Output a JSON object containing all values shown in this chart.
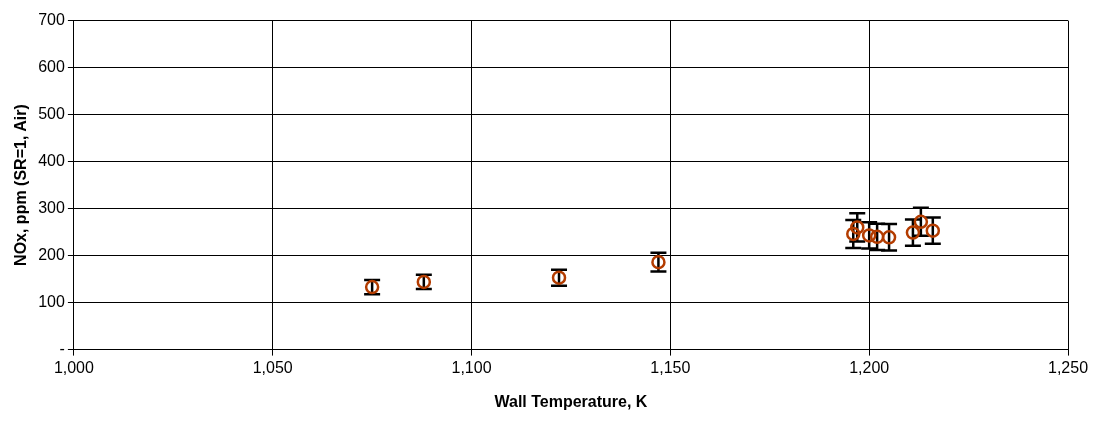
{
  "chart_data": {
    "type": "scatter",
    "xlabel": "Wall Temperature, K",
    "ylabel": "NOx, ppm (SR=1, Air)",
    "x": [
      1075,
      1088,
      1122,
      1147,
      1196,
      1197,
      1200,
      1202,
      1205,
      1211,
      1213,
      1216
    ],
    "series": [
      {
        "color": "#b33c00",
        "values": [
          133,
          144,
          153,
          186,
          246,
          260,
          243,
          240,
          239,
          249,
          272,
          253
        ],
        "errors": [
          15,
          15,
          17,
          20,
          30,
          30,
          28,
          28,
          28,
          28,
          30,
          28
        ]
      }
    ],
    "marker": "circle",
    "xlim": [
      1000,
      1250
    ],
    "xticks": [
      {
        "value": 1000,
        "label": "1,000"
      },
      {
        "value": 1050,
        "label": "1,050"
      },
      {
        "value": 1100,
        "label": "1,100"
      },
      {
        "value": 1150,
        "label": "1,150"
      },
      {
        "value": 1200,
        "label": "1,200"
      },
      {
        "value": 1250,
        "label": "1,250"
      }
    ],
    "ylim": [
      0,
      700
    ],
    "yticks": [
      {
        "value": 0,
        "label": "-"
      },
      100,
      200,
      300,
      400,
      500,
      600,
      700
    ],
    "grid": true,
    "legend": false
  }
}
